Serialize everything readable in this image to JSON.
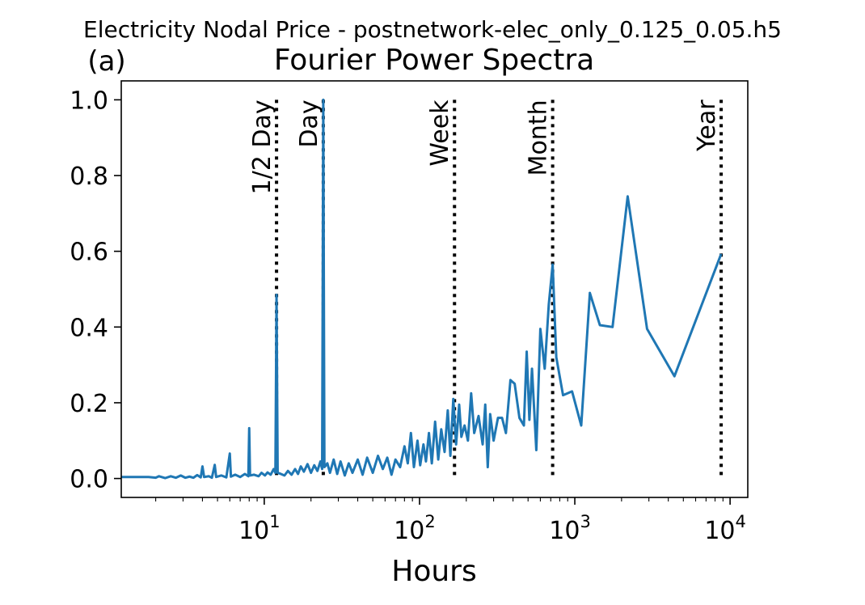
{
  "figure": {
    "suptitle": "Electricity Nodal Price - postnetwork-elec_only_0.125_0.05.h5",
    "panel_label": "(a)"
  },
  "chart_data": {
    "type": "line",
    "title": "Fourier Power Spectra",
    "xlabel": "Hours",
    "ylabel": "",
    "xscale": "log",
    "xlim": [
      1.2,
      13000
    ],
    "ylim": [
      -0.05,
      1.05
    ],
    "grid": false,
    "yticks": [
      {
        "value": 0.0,
        "label": "0.0"
      },
      {
        "value": 0.2,
        "label": "0.2"
      },
      {
        "value": 0.4,
        "label": "0.4"
      },
      {
        "value": 0.6,
        "label": "0.6"
      },
      {
        "value": 0.8,
        "label": "0.8"
      },
      {
        "value": 1.0,
        "label": "1.0"
      }
    ],
    "xticks": [
      {
        "value": 10,
        "base": "10",
        "exp": "1"
      },
      {
        "value": 100,
        "base": "10",
        "exp": "2"
      },
      {
        "value": 1000,
        "base": "10",
        "exp": "3"
      },
      {
        "value": 10000,
        "base": "10",
        "exp": "4"
      }
    ],
    "reference_lines": [
      {
        "x": 12,
        "label": "1/2 Day",
        "style": "dotted",
        "color": "#000000"
      },
      {
        "x": 24,
        "label": "Day",
        "style": "dotted",
        "color": "#000000"
      },
      {
        "x": 168,
        "label": "Week",
        "style": "dotted",
        "color": "#000000"
      },
      {
        "x": 720,
        "label": "Month",
        "style": "dotted",
        "color": "#000000"
      },
      {
        "x": 8760,
        "label": "Year",
        "style": "dotted",
        "color": "#000000"
      }
    ],
    "series": [
      {
        "color": "#1f77b4",
        "points": [
          [
            1.2,
            0.004
          ],
          [
            1.8,
            0.004
          ],
          [
            2.0,
            0.002
          ],
          [
            2.1,
            0.006
          ],
          [
            2.3,
            0.001
          ],
          [
            2.5,
            0.006
          ],
          [
            2.7,
            0.002
          ],
          [
            2.9,
            0.008
          ],
          [
            3.1,
            0.002
          ],
          [
            3.3,
            0.005
          ],
          [
            3.5,
            0.002
          ],
          [
            3.7,
            0.009
          ],
          [
            3.9,
            0.003
          ],
          [
            4.0,
            0.032
          ],
          [
            4.1,
            0.004
          ],
          [
            4.4,
            0.006
          ],
          [
            4.6,
            0.002
          ],
          [
            4.8,
            0.036
          ],
          [
            4.9,
            0.004
          ],
          [
            5.3,
            0.008
          ],
          [
            5.7,
            0.003
          ],
          [
            6.0,
            0.066
          ],
          [
            6.1,
            0.005
          ],
          [
            6.5,
            0.01
          ],
          [
            7.0,
            0.004
          ],
          [
            7.5,
            0.012
          ],
          [
            7.9,
            0.006
          ],
          [
            8.0,
            0.133
          ],
          [
            8.1,
            0.008
          ],
          [
            8.6,
            0.01
          ],
          [
            9.2,
            0.006
          ],
          [
            9.6,
            0.015
          ],
          [
            10.1,
            0.008
          ],
          [
            10.5,
            0.016
          ],
          [
            11.0,
            0.01
          ],
          [
            11.5,
            0.025
          ],
          [
            11.8,
            0.015
          ],
          [
            12.0,
            0.485
          ],
          [
            12.2,
            0.015
          ],
          [
            12.8,
            0.012
          ],
          [
            13.5,
            0.008
          ],
          [
            14.2,
            0.02
          ],
          [
            15.0,
            0.01
          ],
          [
            15.8,
            0.025
          ],
          [
            16.5,
            0.012
          ],
          [
            17.2,
            0.032
          ],
          [
            18.0,
            0.018
          ],
          [
            19.0,
            0.038
          ],
          [
            20.0,
            0.015
          ],
          [
            21.0,
            0.035
          ],
          [
            22.0,
            0.02
          ],
          [
            23.0,
            0.045
          ],
          [
            23.6,
            0.025
          ],
          [
            24.0,
            1.0
          ],
          [
            24.4,
            0.03
          ],
          [
            25.5,
            0.04
          ],
          [
            26.5,
            0.015
          ],
          [
            28.0,
            0.05
          ],
          [
            29.5,
            0.012
          ],
          [
            31.0,
            0.045
          ],
          [
            33.0,
            0.008
          ],
          [
            35.0,
            0.04
          ],
          [
            37.0,
            0.015
          ],
          [
            40.0,
            0.05
          ],
          [
            43.0,
            0.01
          ],
          [
            46.0,
            0.055
          ],
          [
            50.0,
            0.015
          ],
          [
            54.0,
            0.06
          ],
          [
            58.0,
            0.025
          ],
          [
            62.0,
            0.055
          ],
          [
            66.0,
            0.01
          ],
          [
            70.0,
            0.05
          ],
          [
            75.0,
            0.03
          ],
          [
            80.0,
            0.085
          ],
          [
            84.0,
            0.04
          ],
          [
            88.0,
            0.12
          ],
          [
            92.0,
            0.03
          ],
          [
            97.0,
            0.1
          ],
          [
            101.0,
            0.035
          ],
          [
            106.0,
            0.09
          ],
          [
            110.0,
            0.045
          ],
          [
            115.0,
            0.12
          ],
          [
            120.0,
            0.04
          ],
          [
            126.0,
            0.15
          ],
          [
            132.0,
            0.05
          ],
          [
            138.0,
            0.13
          ],
          [
            145.0,
            0.07
          ],
          [
            152.0,
            0.18
          ],
          [
            158.0,
            0.06
          ],
          [
            165.0,
            0.21
          ],
          [
            172.0,
            0.09
          ],
          [
            180.0,
            0.195
          ],
          [
            186.0,
            0.11
          ],
          [
            195.0,
            0.14
          ],
          [
            205.0,
            0.1
          ],
          [
            215.0,
            0.225
          ],
          [
            225.0,
            0.12
          ],
          [
            240.0,
            0.165
          ],
          [
            255.0,
            0.09
          ],
          [
            265.0,
            0.195
          ],
          [
            275.0,
            0.03
          ],
          [
            285.0,
            0.17
          ],
          [
            300.0,
            0.1
          ],
          [
            320.0,
            0.16
          ],
          [
            340.0,
            0.16
          ],
          [
            360.0,
            0.12
          ],
          [
            385.0,
            0.26
          ],
          [
            410.0,
            0.25
          ],
          [
            440.0,
            0.16
          ],
          [
            470.0,
            0.14
          ],
          [
            490.0,
            0.335
          ],
          [
            510.0,
            0.155
          ],
          [
            530.0,
            0.29
          ],
          [
            565.0,
            0.075
          ],
          [
            600.0,
            0.395
          ],
          [
            640.0,
            0.29
          ],
          [
            680.0,
            0.46
          ],
          [
            720.0,
            0.565
          ],
          [
            760.0,
            0.32
          ],
          [
            840.0,
            0.22
          ],
          [
            960.0,
            0.23
          ],
          [
            1100.0,
            0.14
          ],
          [
            1250.0,
            0.49
          ],
          [
            1450.0,
            0.405
          ],
          [
            1750.0,
            0.4
          ],
          [
            2190.0,
            0.745
          ],
          [
            2920.0,
            0.395
          ],
          [
            4380.0,
            0.27
          ],
          [
            8760.0,
            0.593
          ]
        ]
      }
    ]
  }
}
